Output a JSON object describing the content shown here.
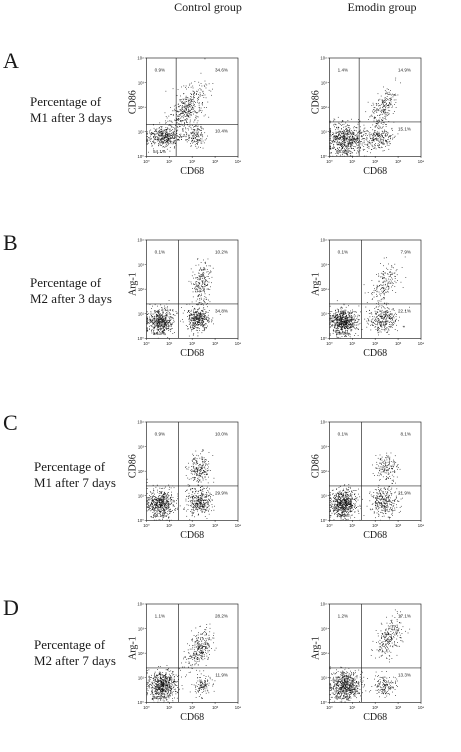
{
  "column_headers": [
    "Control group",
    "Emodin group"
  ],
  "rows": [
    {
      "letter": "A",
      "label_lines": [
        "Percentage of",
        "M1 after 3 days"
      ]
    },
    {
      "letter": "B",
      "label_lines": [
        "Percentage of",
        "M2 after 3 days"
      ]
    },
    {
      "letter": "C",
      "label_lines": [
        "Percentage of",
        "M1 after 7 days"
      ]
    },
    {
      "letter": "D",
      "label_lines": [
        "Percentage of",
        "M2 after 7 days"
      ]
    }
  ],
  "chart_data": [
    {
      "type": "scatter",
      "row": "A",
      "column": "Control group",
      "xlabel": "CD68",
      "ylabel": "CD86",
      "xscale": "log",
      "yscale": "log",
      "xlim": [
        1,
        10000
      ],
      "ylim": [
        1,
        10000
      ],
      "x_ticks": [
        "10⁰",
        "10¹",
        "10²",
        "10³",
        "10⁴"
      ],
      "y_ticks": [
        "10⁰",
        "10¹",
        "10²",
        "10³",
        "10⁴"
      ],
      "quadrants": {
        "UL": "0.9%",
        "UR": "34.6%",
        "LL": "54.1%",
        "LR": "10.4%"
      },
      "gate": {
        "x": 20,
        "y": 20
      },
      "clusters": [
        {
          "x": 6,
          "y": 6,
          "n": 420,
          "sx": 0.38,
          "sy": 0.22
        },
        {
          "x": 60,
          "y": 90,
          "n": 420,
          "sx": 0.4,
          "sy": 0.4
        },
        {
          "x": 130,
          "y": 7,
          "n": 150,
          "sx": 0.22,
          "sy": 0.22
        }
      ]
    },
    {
      "type": "scatter",
      "row": "A",
      "column": "Emodin group",
      "xlabel": "CD68",
      "ylabel": "CD86",
      "xscale": "log",
      "yscale": "log",
      "xlim": [
        1,
        10000
      ],
      "ylim": [
        1,
        10000
      ],
      "x_ticks": [
        "10⁰",
        "10¹",
        "10²",
        "10³",
        "10⁴"
      ],
      "y_ticks": [
        "10⁰",
        "10¹",
        "10²",
        "10³",
        "10⁴"
      ],
      "quadrants": {
        "UL": "1.4%",
        "UR": "14.9%",
        "LL": "68.6%",
        "LR": "15.1%"
      },
      "gate": {
        "x": 20,
        "y": 25
      },
      "clusters": [
        {
          "x": 5,
          "y": 5,
          "n": 650,
          "sx": 0.42,
          "sy": 0.3
        },
        {
          "x": 200,
          "y": 100,
          "n": 220,
          "sx": 0.3,
          "sy": 0.35
        },
        {
          "x": 150,
          "y": 6,
          "n": 230,
          "sx": 0.3,
          "sy": 0.25
        }
      ]
    },
    {
      "type": "scatter",
      "row": "B",
      "column": "Control group",
      "xlabel": "CD68",
      "ylabel": "Arg-1",
      "xscale": "log",
      "yscale": "log",
      "xlim": [
        1,
        10000
      ],
      "ylim": [
        1,
        10000
      ],
      "x_ticks": [
        "10⁰",
        "10¹",
        "10²",
        "10³",
        "10⁴"
      ],
      "y_ticks": [
        "10⁰",
        "10¹",
        "10²",
        "10³",
        "10⁴"
      ],
      "quadrants": {
        "UL": "0.1%",
        "UR": "10.2%",
        "LL": "54.9%",
        "LR": "34.8%"
      },
      "gate": {
        "x": 25,
        "y": 25
      },
      "clusters": [
        {
          "x": 4,
          "y": 5,
          "n": 550,
          "sx": 0.28,
          "sy": 0.25
        },
        {
          "x": 180,
          "y": 6,
          "n": 380,
          "sx": 0.25,
          "sy": 0.25
        },
        {
          "x": 250,
          "y": 200,
          "n": 220,
          "sx": 0.22,
          "sy": 0.42
        }
      ]
    },
    {
      "type": "scatter",
      "row": "B",
      "column": "Emodin group",
      "xlabel": "CD68",
      "ylabel": "Arg-1",
      "xscale": "log",
      "yscale": "log",
      "xlim": [
        1,
        10000
      ],
      "ylim": [
        1,
        10000
      ],
      "x_ticks": [
        "10⁰",
        "10¹",
        "10²",
        "10³",
        "10⁴"
      ],
      "y_ticks": [
        "10⁰",
        "10¹",
        "10²",
        "10³",
        "10⁴"
      ],
      "quadrants": {
        "UL": "0.1%",
        "UR": "7.9%",
        "LL": "69.9%",
        "LR": "22.1%"
      },
      "gate": {
        "x": 25,
        "y": 25
      },
      "clusters": [
        {
          "x": 4,
          "y": 5,
          "n": 650,
          "sx": 0.28,
          "sy": 0.25
        },
        {
          "x": 220,
          "y": 6,
          "n": 300,
          "sx": 0.3,
          "sy": 0.25
        },
        {
          "x": 250,
          "y": 150,
          "n": 180,
          "sx": 0.3,
          "sy": 0.4
        }
      ]
    },
    {
      "type": "scatter",
      "row": "C",
      "column": "Control group",
      "xlabel": "CD68",
      "ylabel": "CD86",
      "xscale": "log",
      "yscale": "log",
      "xlim": [
        1,
        10000
      ],
      "ylim": [
        1,
        10000
      ],
      "x_ticks": [
        "10⁰",
        "10¹",
        "10²",
        "10³",
        "10⁴"
      ],
      "y_ticks": [
        "10⁰",
        "10¹",
        "10²",
        "10³",
        "10⁴"
      ],
      "quadrants": {
        "UL": "0.9%",
        "UR": "10.0%",
        "LL": "60.1%",
        "LR": "29.9%"
      },
      "gate": {
        "x": 25,
        "y": 25
      },
      "clusters": [
        {
          "x": 4,
          "y": 5,
          "n": 550,
          "sx": 0.3,
          "sy": 0.28
        },
        {
          "x": 200,
          "y": 6,
          "n": 350,
          "sx": 0.28,
          "sy": 0.28
        },
        {
          "x": 200,
          "y": 120,
          "n": 220,
          "sx": 0.25,
          "sy": 0.3
        }
      ]
    },
    {
      "type": "scatter",
      "row": "C",
      "column": "Emodin group",
      "xlabel": "CD68",
      "ylabel": "CD86",
      "xscale": "log",
      "yscale": "log",
      "xlim": [
        1,
        10000
      ],
      "ylim": [
        1,
        10000
      ],
      "x_ticks": [
        "10⁰",
        "10¹",
        "10²",
        "10³",
        "10⁴"
      ],
      "y_ticks": [
        "10⁰",
        "10¹",
        "10²",
        "10³",
        "10⁴"
      ],
      "quadrants": {
        "UL": "0.1%",
        "UR": "8.1%",
        "LL": "70.0%",
        "LR": "21.9%"
      },
      "gate": {
        "x": 25,
        "y": 25
      },
      "clusters": [
        {
          "x": 4,
          "y": 5,
          "n": 650,
          "sx": 0.28,
          "sy": 0.28
        },
        {
          "x": 250,
          "y": 6,
          "n": 300,
          "sx": 0.3,
          "sy": 0.28
        },
        {
          "x": 300,
          "y": 150,
          "n": 160,
          "sx": 0.25,
          "sy": 0.3
        }
      ]
    },
    {
      "type": "scatter",
      "row": "D",
      "column": "Control group",
      "xlabel": "CD68",
      "ylabel": "Arg-1",
      "xscale": "log",
      "yscale": "log",
      "xlim": [
        1,
        10000
      ],
      "ylim": [
        1,
        10000
      ],
      "x_ticks": [
        "10⁰",
        "10¹",
        "10²",
        "10³",
        "10⁴"
      ],
      "y_ticks": [
        "10⁰",
        "10¹",
        "10²",
        "10³",
        "10⁴"
      ],
      "quadrants": {
        "UL": "1.1%",
        "UR": "28.2%",
        "LL": "58.8%",
        "LR": "11.9%"
      },
      "gate": {
        "x": 25,
        "y": 25
      },
      "clusters": [
        {
          "x": 5,
          "y": 5,
          "n": 650,
          "sx": 0.3,
          "sy": 0.3
        },
        {
          "x": 200,
          "y": 150,
          "n": 300,
          "sx": 0.28,
          "sy": 0.35
        },
        {
          "x": 250,
          "y": 5,
          "n": 120,
          "sx": 0.2,
          "sy": 0.2
        }
      ]
    },
    {
      "type": "scatter",
      "row": "D",
      "column": "Emodin group",
      "xlabel": "CD68",
      "ylabel": "Arg-1",
      "xscale": "log",
      "yscale": "log",
      "xlim": [
        1,
        10000
      ],
      "ylim": [
        1,
        10000
      ],
      "x_ticks": [
        "10⁰",
        "10¹",
        "10²",
        "10³",
        "10⁴"
      ],
      "y_ticks": [
        "10⁰",
        "10¹",
        "10²",
        "10³",
        "10⁴"
      ],
      "quadrants": {
        "UL": "1.2%",
        "UR": "17.1%",
        "LL": "68.4%",
        "LR": "13.3%"
      },
      "gate": {
        "x": 25,
        "y": 25
      },
      "clusters": [
        {
          "x": 5,
          "y": 5,
          "n": 650,
          "sx": 0.3,
          "sy": 0.3
        },
        {
          "x": 400,
          "y": 400,
          "n": 250,
          "sx": 0.3,
          "sy": 0.35
        },
        {
          "x": 250,
          "y": 5,
          "n": 150,
          "sx": 0.25,
          "sy": 0.22
        }
      ]
    }
  ]
}
